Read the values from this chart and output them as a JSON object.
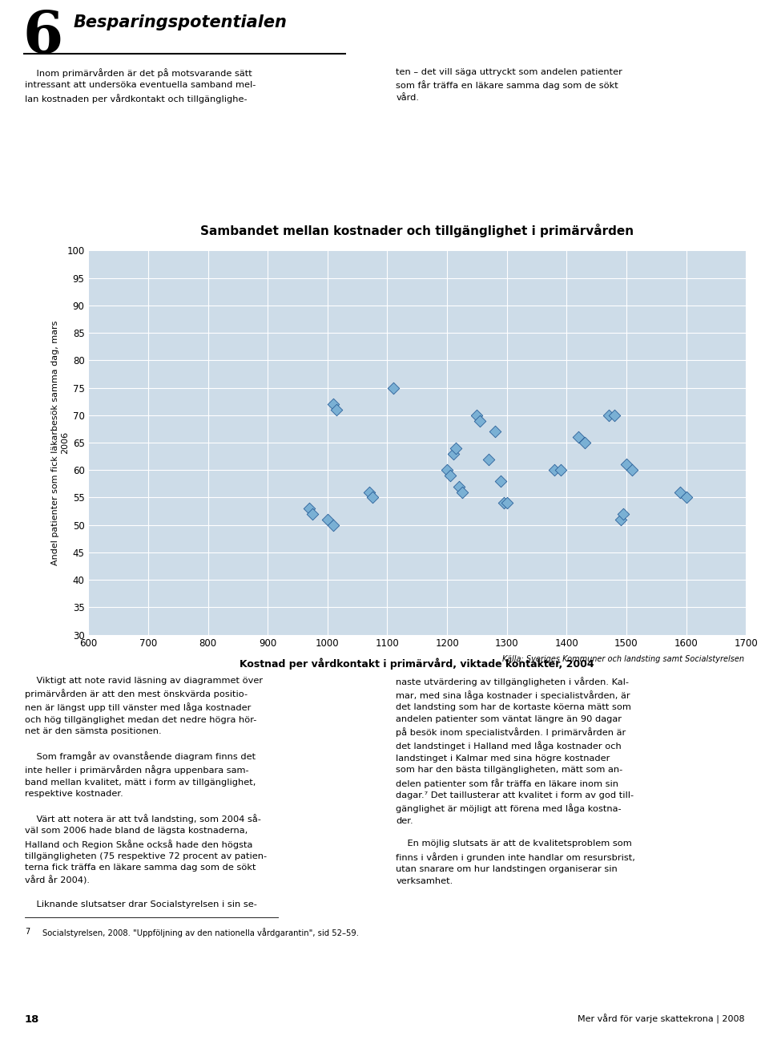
{
  "title": "Sambandet mellan kostnader och tillgänglighet i primärvården",
  "xlabel": "Kostnad per vårdkontakt i primärvård, viktade kontakter, 2004",
  "ylabel": "Andel patienter som fick läkarbesök samma dag, mars\n2006",
  "source": "Källa: Sveriges Kommuner och landsting samt Socialstyrelsen",
  "xlim": [
    600,
    1700
  ],
  "ylim": [
    30,
    100
  ],
  "xticks": [
    600,
    700,
    800,
    900,
    1000,
    1100,
    1200,
    1300,
    1400,
    1500,
    1600,
    1700
  ],
  "yticks": [
    30,
    35,
    40,
    45,
    50,
    55,
    60,
    65,
    70,
    75,
    80,
    85,
    90,
    95,
    100
  ],
  "bg_color": "#cddce8",
  "scatter_color": "#7ab0d4",
  "scatter_edge_color": "#2a6099",
  "scatter_size": 55,
  "points": [
    [
      1010,
      72
    ],
    [
      1015,
      71
    ],
    [
      1110,
      75
    ],
    [
      1000,
      51
    ],
    [
      1010,
      50
    ],
    [
      970,
      53
    ],
    [
      975,
      52
    ],
    [
      1070,
      56
    ],
    [
      1075,
      55
    ],
    [
      1200,
      60
    ],
    [
      1205,
      59
    ],
    [
      1210,
      63
    ],
    [
      1215,
      64
    ],
    [
      1220,
      57
    ],
    [
      1225,
      56
    ],
    [
      1250,
      70
    ],
    [
      1255,
      69
    ],
    [
      1270,
      62
    ],
    [
      1280,
      67
    ],
    [
      1290,
      58
    ],
    [
      1295,
      54
    ],
    [
      1300,
      54
    ],
    [
      1380,
      60
    ],
    [
      1390,
      60
    ],
    [
      1420,
      66
    ],
    [
      1430,
      65
    ],
    [
      1470,
      70
    ],
    [
      1480,
      70
    ],
    [
      1490,
      51
    ],
    [
      1495,
      52
    ],
    [
      1500,
      61
    ],
    [
      1510,
      60
    ],
    [
      1590,
      56
    ],
    [
      1600,
      55
    ]
  ],
  "header_number": "6",
  "header_title": "Besparingspotentialen",
  "page_number": "18",
  "page_footer": "Mer vård för varje skattekrona | 2008",
  "footnote_number": "7",
  "footnote_text": "Socialstyrelsen, 2008. \"Uppföljning av den nationella vårdgarantin\", sid 52–59.",
  "body_left": "    Inom primärvården är det på motsvarande sätt\nintressant att undersöka eventuella samband mel-\nlan kostnaden per vårdkontakt och tillgänglighe-",
  "body_right": "ten – det vill säga uttryckt som andelen patienter\nsom får träffa en läkare samma dag som de sökt\nvård.",
  "col_left_1": "    Viktigt att note ravid läsning av diagrammet över\nprimärvården är att den mest önskvärda positio-\nnen är längst upp till vänster med låga kostnader\noch hög tillgänglighet medan det nedre högra hör-\nnet är den sämsta positionen.",
  "col_left_2": "    Som framgår av ovanstående diagram finns det\ninte heller i primärvården några uppenbara sam-\nband mellan kvalitet, mätt i form av tillgänglighet,\nrespektive kostnader.",
  "col_left_3": "    Värt att notera är att två landsting, som 2004 så-\nväl som 2006 hade bland de lägsta kostnaderna,\nHalland och Region Skåne också hade den högsta\ntillgängligheten (75 respektive 72 procent av patien-\nterna fick träffa en läkare samma dag som de sökt\nvård år 2004).",
  "col_left_4": "    Liknande slutsatser drar Socialstyrelsen i sin se-",
  "col_right_1": "naste utvärdering av tillgängligheten i vården. Kal-\nmar, med sina låga kostnader i specialistvården, är\ndet landsting som har de kortaste köerna mätt som\nandelen patienter som väntat längre än 90 dagar\npå besök inom specialistvården. I primärvården är\ndet landstinget i Halland med låga kostnader och\nlandstinget i Kalmar med sina högre kostnader\nsom har den bästa tillgängligheten, mätt som an-\ndelen patienter som får träffa en läkare inom sin\ndagar.⁷ Det taillusterar att kvalitet i form av god till-\ngänglighet är möjligt att förena med låga kostna-\nder.",
  "col_right_2": "    En möjlig slutsats är att de kvalitetsproblem som\nfinns i vården i grunden inte handlar om resursbrist,\nutan snarare om hur landstingen organiserar sin\nverksamhet."
}
